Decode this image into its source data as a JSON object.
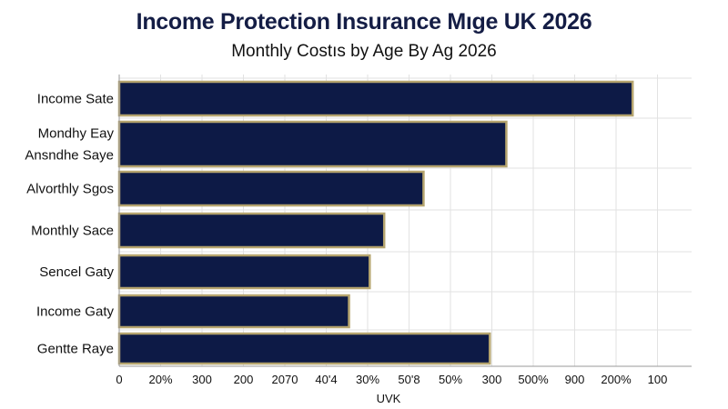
{
  "chart_data": {
    "type": "bar",
    "orientation": "horizontal",
    "title": "Income Protection Insurance Mıge UK 2026",
    "subtitle": "Monthly Costıs by Age By Ag 2026",
    "xlabel": "UVK",
    "ylabel": "",
    "categories": [
      "Income Sate",
      "Mondhy Eay\nAnsndhe Saye",
      "Alvorthly Sgos",
      "Monthly Sace",
      "Sencel Gaty",
      "Income Gaty",
      "Gentte Raye"
    ],
    "values": [
      12.4,
      9.35,
      7.35,
      6.4,
      6.05,
      5.55,
      8.95
    ],
    "x_tick_labels": [
      "0",
      "20%",
      "300",
      "200",
      "2070",
      "40'4",
      "30%",
      "50'8",
      "50%",
      "300",
      "500%",
      "900",
      "200%",
      "100"
    ],
    "xlim": [
      0,
      13.8
    ],
    "grid": true,
    "legend": "none",
    "colors": {
      "bar_fill": "#0d1a46",
      "bar_edge": "#b5a46e",
      "grid": "#e2e2e2"
    }
  }
}
